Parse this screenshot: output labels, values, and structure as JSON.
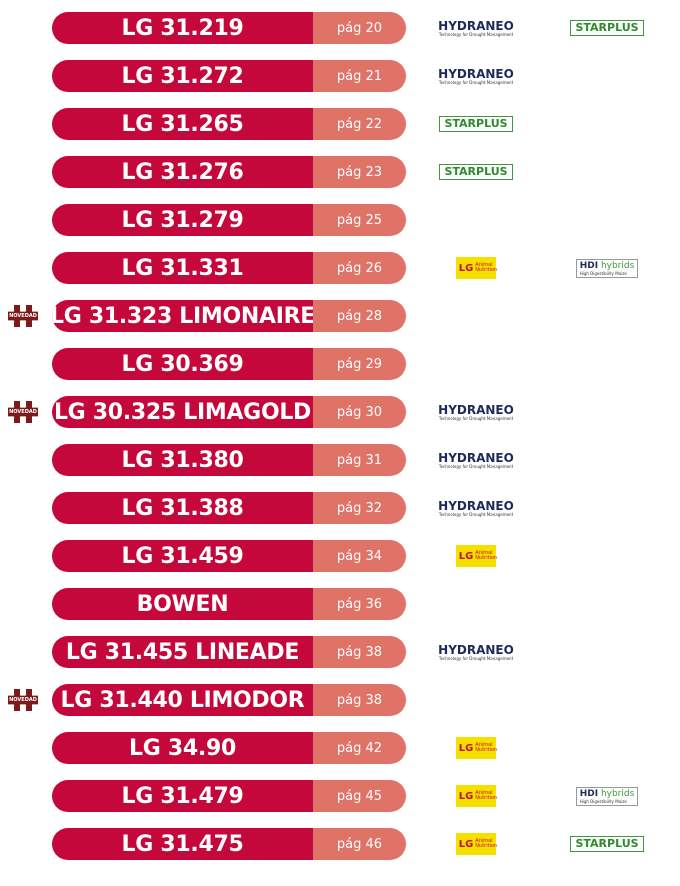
{
  "rows": [
    {
      "name": "LG 31.219",
      "page": "pág 20",
      "logos": [
        {
          "name": "HYDRANEO",
          "tagline": "Technology for Drought Management"
        },
        {
          "name": "STARPLUS"
        }
      ]
    },
    {
      "name": "LG 31.272",
      "page": "pág 21",
      "logos": [
        {
          "name": "HYDRANEO",
          "tagline": "Technology for Drought Management"
        }
      ]
    },
    {
      "name": "LG 31.265",
      "page": "pág 22",
      "logos": [
        {
          "name": "STARPLUS"
        }
      ]
    },
    {
      "name": "LG 31.276",
      "page": "pág 23",
      "logos": [
        {
          "name": "STARPLUS"
        }
      ]
    },
    {
      "name": "LG 31.279",
      "page": "pág 25",
      "logos": []
    },
    {
      "name": "LG 31.331",
      "page": "pág 26",
      "logos": [
        {
          "mark": "LG",
          "name": "Animal Nutrition"
        },
        {
          "name": "HDI",
          "suffix": "hybrids",
          "tagline": "High Digestibility Maize"
        }
      ]
    },
    {
      "name": "LG 31.323 LIMONAIRE",
      "page": "pág 28",
      "novedad": "NOVEDAD",
      "logos": []
    },
    {
      "name": "LG 30.369",
      "page": "pág 29",
      "logos": []
    },
    {
      "name": "LG 30.325 LIMAGOLD",
      "page": "pág 30",
      "novedad": "NOVEDAD",
      "logos": [
        {
          "name": "HYDRANEO",
          "tagline": "Technology for Drought Management"
        }
      ]
    },
    {
      "name": "LG 31.380",
      "page": "pág 31",
      "logos": [
        {
          "name": "HYDRANEO",
          "tagline": "Technology for Drought Management"
        }
      ]
    },
    {
      "name": "LG 31.388",
      "page": "pág 32",
      "logos": [
        {
          "name": "HYDRANEO",
          "tagline": "Technology for Drought Management"
        }
      ]
    },
    {
      "name": "LG 31.459",
      "page": "pág 34",
      "logos": [
        {
          "mark": "LG",
          "name": "Animal Nutrition"
        }
      ]
    },
    {
      "name": "BOWEN",
      "page": "pág 36",
      "logos": []
    },
    {
      "name": "LG 31.455 LINEADE",
      "page": "pág 38",
      "logos": [
        {
          "name": "HYDRANEO",
          "tagline": "Technology for Drought Management"
        }
      ]
    },
    {
      "name": "LG 31.440 LIMODOR",
      "page": "pág 38",
      "novedad": "NOVEDAD",
      "logos": []
    },
    {
      "name": "LG 34.90",
      "page": "pág 42",
      "logos": [
        {
          "mark": "LG",
          "name": "Animal Nutrition"
        }
      ]
    },
    {
      "name": "LG 31.479",
      "page": "pág 45",
      "logos": [
        {
          "mark": "LG",
          "name": "Animal Nutrition"
        },
        {
          "name": "HDI",
          "suffix": "hybrids",
          "tagline": "High Digestibility Maize"
        }
      ]
    },
    {
      "name": "LG 31.475",
      "page": "pág 46",
      "logos": [
        {
          "mark": "LG",
          "name": "Animal Nutrition"
        },
        {
          "name": "STARPLUS"
        }
      ]
    }
  ]
}
